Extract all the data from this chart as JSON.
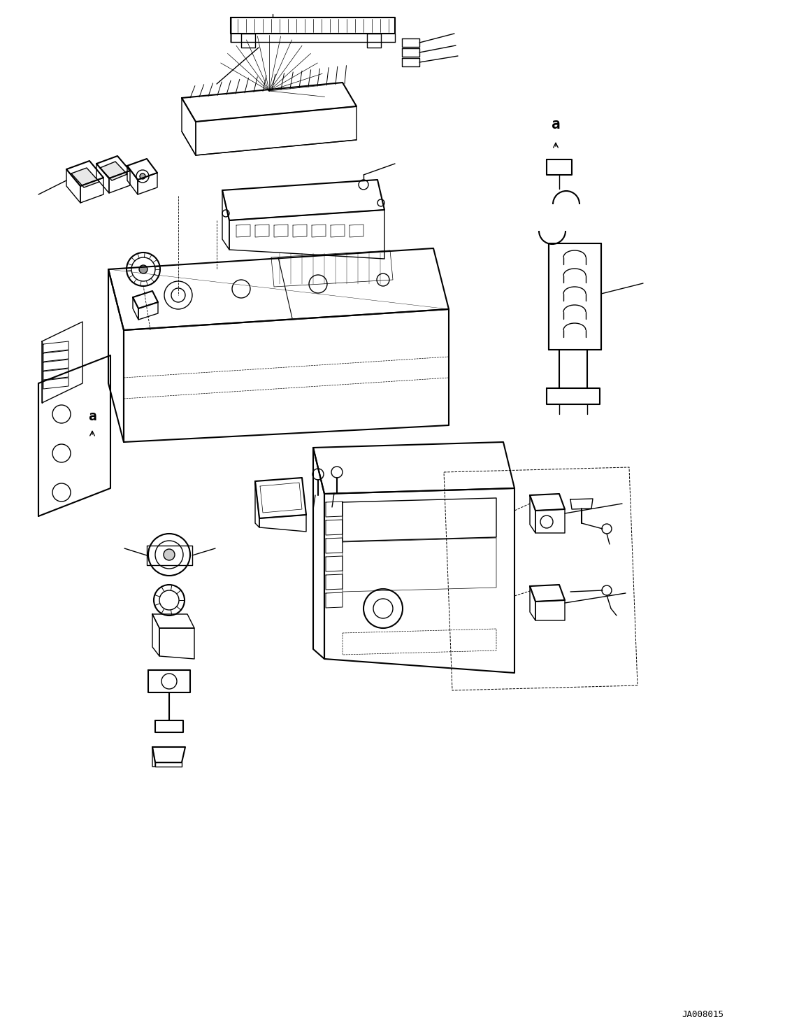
{
  "figure_width": 11.43,
  "figure_height": 14.74,
  "dpi": 100,
  "bg_color": "#ffffff",
  "line_color": "#000000",
  "watermark": "JA008015"
}
